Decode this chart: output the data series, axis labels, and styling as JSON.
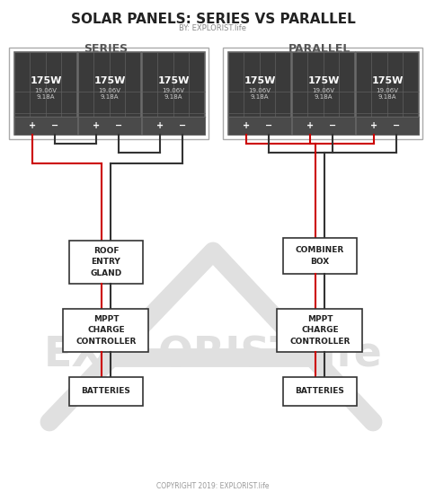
{
  "title": "SOLAR PANELS: SERIES VS PARALLEL",
  "subtitle": "BY: EXPLORIST.life",
  "copyright": "COPYRIGHT 2019: EXPLORIST.life",
  "bg_color": "#ffffff",
  "series_label": "SERIES",
  "parallel_label": "PARALLEL",
  "panel_label": "175W",
  "panel_sublabel1": "19.06V",
  "panel_sublabel2": "9.18A",
  "series_box1_label": "ROOF\nENTRY\nGLAND",
  "series_box2_label": "MPPT\nCHARGE\nCONTROLLER",
  "series_box3_label": "BATTERIES",
  "parallel_box1_label": "COMBINER\nBOX",
  "parallel_box2_label": "MPPT\nCHARGE\nCONTROLLER",
  "parallel_box3_label": "BATTERIES",
  "panel_bg": "#3a3a3a",
  "panel_border": "#666666",
  "cell_line": "#606060",
  "panel_bottom_bar": "#4a4a4a",
  "wire_red": "#cc0000",
  "wire_dark": "#333333",
  "box_bg": "#ffffff",
  "box_border": "#333333",
  "watermark_color": "#e0e0e0",
  "text_color": "#222222",
  "label_color": "#555555"
}
